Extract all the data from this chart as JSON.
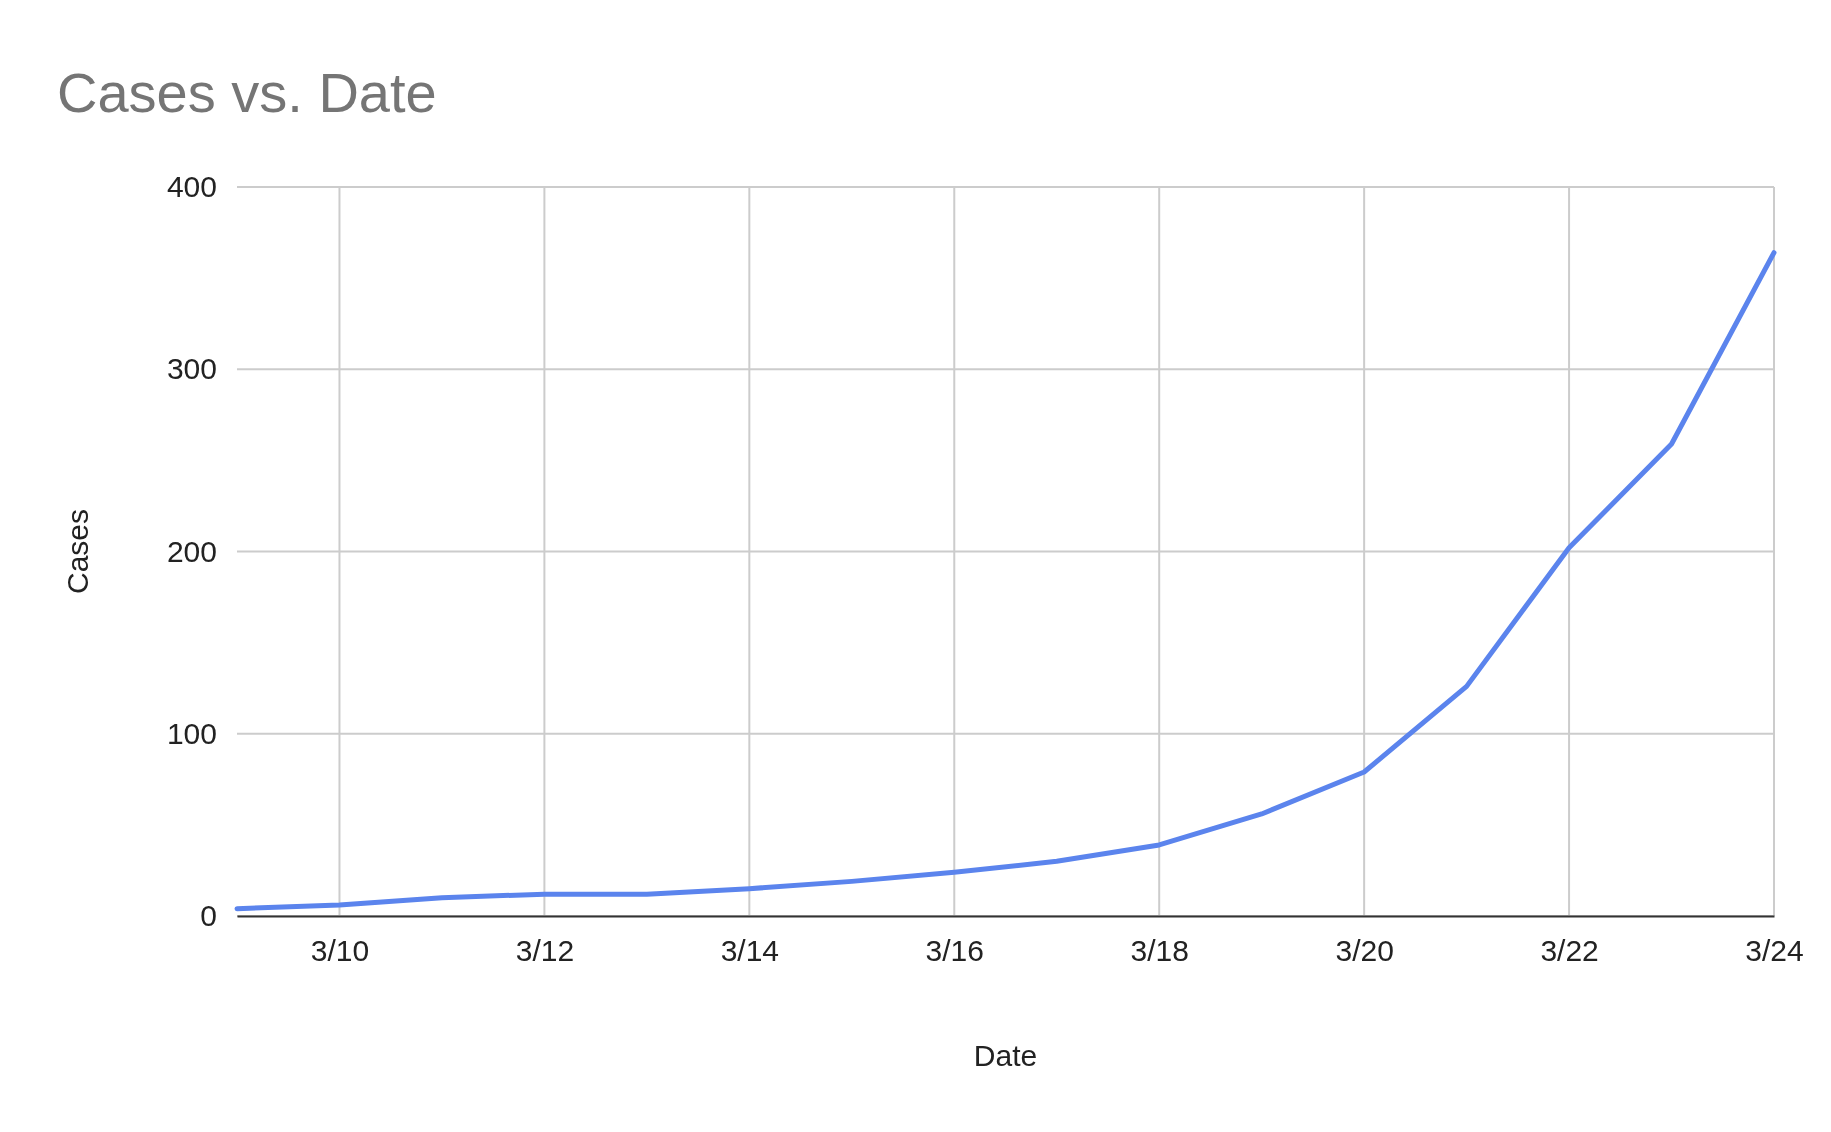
{
  "chart_data": {
    "type": "line",
    "title": "Cases vs. Date",
    "xlabel": "Date",
    "ylabel": "Cases",
    "x": [
      "--03-09",
      "--03-10",
      "--03-11",
      "--03-12",
      "--03-13",
      "--03-14",
      "--03-15",
      "--03-16",
      "--03-17",
      "--03-18",
      "--03-19",
      "--03-20",
      "--03-21",
      "--03-22",
      "--03-23",
      "--03-24"
    ],
    "series": [
      {
        "color": "#5b84ed",
        "values": [
          4,
          6,
          10,
          12,
          12,
          15,
          19,
          24,
          30,
          39,
          56,
          79,
          126,
          202,
          259,
          364
        ]
      }
    ],
    "xlim": [
      "--03-09",
      "--03-24"
    ],
    "xticks": [
      {
        "value": "--03-10",
        "label": "3/10"
      },
      {
        "value": "--03-12",
        "label": "3/12"
      },
      {
        "value": "--03-14",
        "label": "3/14"
      },
      {
        "value": "--03-16",
        "label": "3/16"
      },
      {
        "value": "--03-18",
        "label": "3/18"
      },
      {
        "value": "--03-20",
        "label": "3/20"
      },
      {
        "value": "--03-22",
        "label": "3/22"
      },
      {
        "value": "--03-24",
        "label": "3/24"
      }
    ],
    "ylim": [
      0,
      400
    ],
    "yticks": [
      0,
      100,
      200,
      300,
      400
    ],
    "grid": true,
    "marker": "none",
    "line_style": "solid"
  }
}
